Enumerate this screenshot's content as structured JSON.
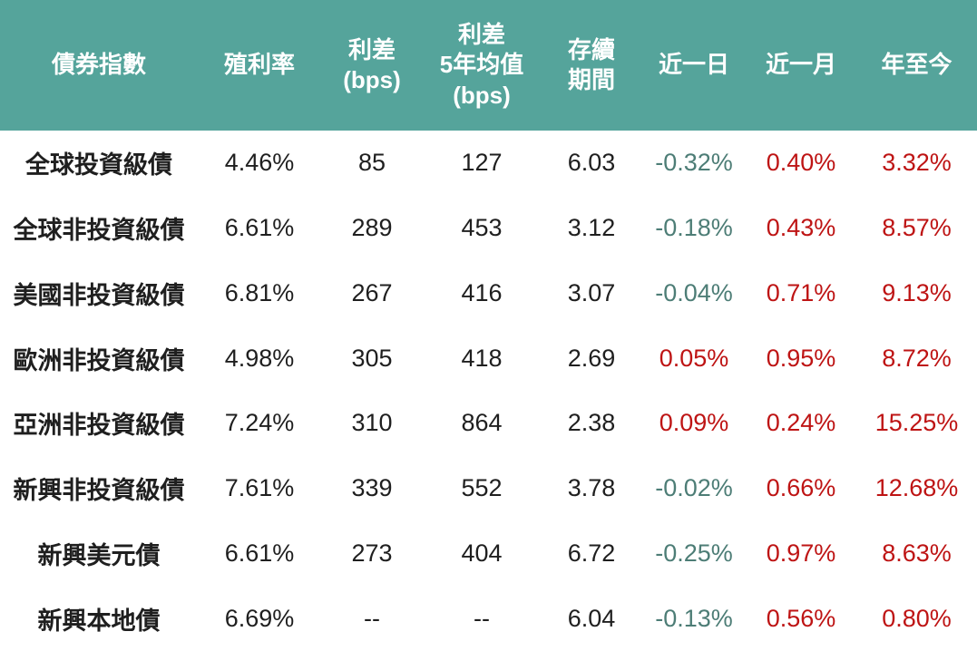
{
  "colors": {
    "header_bg": "#55A49B",
    "header_text": "#FFFFFF",
    "body_text": "#1F1F1F",
    "negative": "#4D7D76",
    "positive": "#BE1414"
  },
  "chart_data": {
    "type": "table",
    "columns": [
      "債券指數",
      "殖利率",
      "利差\n(bps)",
      "利差\n5年均值\n(bps)",
      "存續\n期間",
      "近一日",
      "近一月",
      "年至今"
    ],
    "change_column_indexes": [
      5,
      6,
      7
    ],
    "rows": [
      [
        "全球投資級債",
        "4.46%",
        "85",
        "127",
        "6.03",
        "-0.32%",
        "0.40%",
        "3.32%"
      ],
      [
        "全球非投資級債",
        "6.61%",
        "289",
        "453",
        "3.12",
        "-0.18%",
        "0.43%",
        "8.57%"
      ],
      [
        "美國非投資級債",
        "6.81%",
        "267",
        "416",
        "3.07",
        "-0.04%",
        "0.71%",
        "9.13%"
      ],
      [
        "歐洲非投資級債",
        "4.98%",
        "305",
        "418",
        "2.69",
        "0.05%",
        "0.95%",
        "8.72%"
      ],
      [
        "亞洲非投資級債",
        "7.24%",
        "310",
        "864",
        "2.38",
        "0.09%",
        "0.24%",
        "15.25%"
      ],
      [
        "新興非投資級債",
        "7.61%",
        "339",
        "552",
        "3.78",
        "-0.02%",
        "0.66%",
        "12.68%"
      ],
      [
        "新興美元債",
        "6.61%",
        "273",
        "404",
        "6.72",
        "-0.25%",
        "0.97%",
        "8.63%"
      ],
      [
        "新興本地債",
        "6.69%",
        "--",
        "--",
        "6.04",
        "-0.13%",
        "0.56%",
        "0.80%"
      ]
    ]
  }
}
